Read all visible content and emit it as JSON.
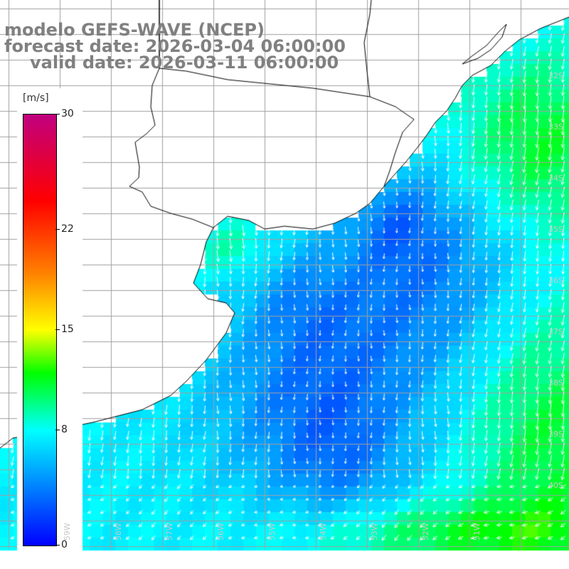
{
  "title": {
    "line1": "modelo GEFS-WAVE (NCEP)",
    "line2": "forecast date: 2026-03-04 06:00:00",
    "line3": "valid date: 2026-03-11 06:00:00"
  },
  "colorbar": {
    "unit": "[m/s]",
    "min": 0,
    "max": 30,
    "ticks": [
      {
        "value": 30,
        "label": "30"
      },
      {
        "value": 22,
        "label": "22"
      },
      {
        "value": 15,
        "label": "15"
      },
      {
        "value": 8,
        "label": "8"
      },
      {
        "value": 0,
        "label": "0"
      }
    ],
    "stops": [
      {
        "value": 0,
        "color": "#0000ff"
      },
      {
        "value": 8,
        "color": "#00ffff"
      },
      {
        "value": 12,
        "color": "#00ff00"
      },
      {
        "value": 15,
        "color": "#ffff00"
      },
      {
        "value": 19,
        "color": "#ff8000"
      },
      {
        "value": 24,
        "color": "#ff0000"
      },
      {
        "value": 30,
        "color": "#c0007f"
      }
    ]
  },
  "lat_labels": [
    "32S",
    "33S",
    "34S",
    "35S",
    "36S",
    "37S",
    "38S",
    "39S",
    "40S"
  ],
  "lon_labels": [
    "59W",
    "58W",
    "57W",
    "56W",
    "55W",
    "54W",
    "53W",
    "52W",
    "51W"
  ],
  "colors": {
    "land": "#ffffff",
    "coastline": "#000000",
    "grid": "#a0a0a0",
    "arrow": "#ffffff"
  }
}
